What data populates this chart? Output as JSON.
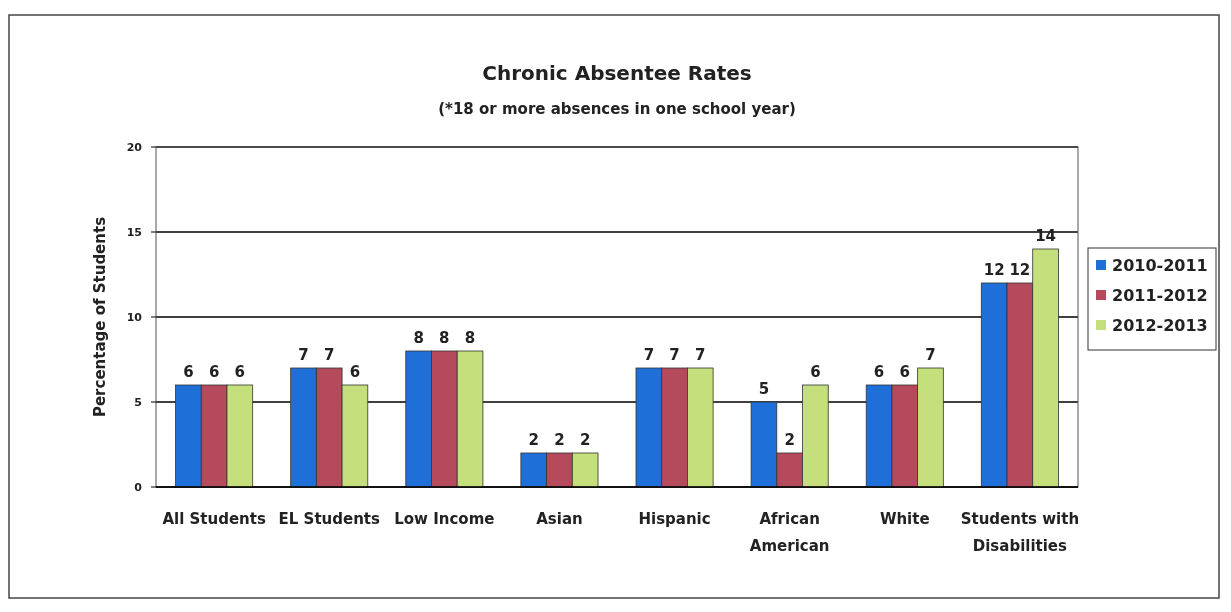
{
  "chart_data": {
    "type": "bar",
    "title": "Chronic Absentee Rates",
    "subtitle": "(*18 or more absences in one school year)",
    "ylabel": "Percentage of Students",
    "categories": [
      "All Students",
      "EL Students",
      "Low Income",
      "Asian",
      "Hispanic",
      "African American",
      "White",
      "Students with Disabilities"
    ],
    "series": [
      {
        "name": "2010-2011",
        "color": "#1f6fd8",
        "values": [
          6,
          7,
          8,
          2,
          7,
          5,
          6,
          12
        ]
      },
      {
        "name": "2011-2012",
        "color": "#b54a5c",
        "values": [
          6,
          7,
          8,
          2,
          7,
          2,
          6,
          12
        ]
      },
      {
        "name": "2012-2013",
        "color": "#c4df7c",
        "values": [
          6,
          6,
          8,
          2,
          7,
          6,
          7,
          14
        ]
      }
    ],
    "ylim": [
      0,
      20
    ],
    "yticks": [
      0,
      5,
      10,
      15,
      20
    ],
    "grid": "y",
    "legend": "right",
    "data_labels": true
  }
}
